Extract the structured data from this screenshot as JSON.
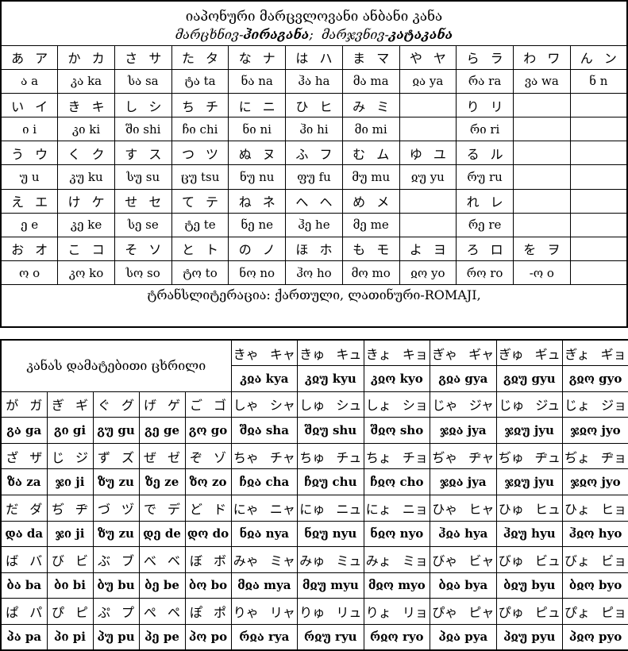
{
  "main_table": {
    "title": "იაპონური მარცვლოვანი ანბანი კანა",
    "subtitle": {
      "pre": "მარცხნივ-",
      "hiragana": "ჰირაგანა",
      "mid": ";  მარჯვნივ-",
      "katakana": "კატაკანა"
    },
    "footer": "ტრანსლიტერაცია: ქართული, ლათინური-ROMAJI,",
    "rows": [
      {
        "type": "kana",
        "cells": [
          "あ ア",
          "か カ",
          "さ サ",
          "た タ",
          "な ナ",
          "は ハ",
          "ま マ",
          "や ヤ",
          "ら ラ",
          "わ ワ",
          "ん ン"
        ]
      },
      {
        "type": "translit",
        "cells": [
          "ა a",
          "კა ka",
          "სა sa",
          "ტა ta",
          "ნა na",
          "ჰა ha",
          "მა ma",
          "ჲა ya",
          "რა ra",
          "ვა wa",
          "ნ n"
        ]
      },
      {
        "type": "kana",
        "cells": [
          "い イ",
          "き キ",
          "し シ",
          "ち チ",
          "に ニ",
          "ひ ヒ",
          "み ミ",
          "",
          "り リ",
          "",
          ""
        ]
      },
      {
        "type": "translit",
        "cells": [
          "ი i",
          "კი ki",
          "ში shi",
          "ჩი chi",
          "ნი ni",
          "ჰი hi",
          "მი mi",
          "",
          "რი ri",
          "",
          ""
        ]
      },
      {
        "type": "kana",
        "cells": [
          "う ウ",
          "く ク",
          "す ス",
          "つ ツ",
          "ぬ ヌ",
          "ふ フ",
          "む ム",
          "ゆ ユ",
          "る ル",
          "",
          ""
        ]
      },
      {
        "type": "translit",
        "cells": [
          "უ u",
          "კუ ku",
          "სუ su",
          "ცუ tsu",
          "ნუ nu",
          "ფუ fu",
          "მუ mu",
          "ჲუ yu",
          "რუ ru",
          "",
          ""
        ]
      },
      {
        "type": "kana",
        "cells": [
          "え エ",
          "け ケ",
          "せ セ",
          "て テ",
          "ね ネ",
          "へ ヘ",
          "め メ",
          "",
          "れ レ",
          "",
          ""
        ]
      },
      {
        "type": "translit",
        "cells": [
          "ე e",
          "კე ke",
          "სე se",
          "ტე te",
          "ნე ne",
          "ჰე he",
          "მე me",
          "",
          "რე re",
          "",
          ""
        ]
      },
      {
        "type": "kana",
        "cells": [
          "お オ",
          "こ コ",
          "そ ソ",
          "と ト",
          "の ノ",
          "ほ ホ",
          "も モ",
          "よ ヨ",
          "ろ ロ",
          "を ヲ",
          ""
        ]
      },
      {
        "type": "translit",
        "cells": [
          "ო o",
          "კო ko",
          "სო so",
          "ტო to",
          "ნო no",
          "ჰო ho",
          "მო mo",
          "ჲო yo",
          "რო ro",
          "-ო o",
          ""
        ]
      }
    ]
  },
  "additional_table": {
    "header_label": "კანას დამატებითი ცხრილი",
    "yoon_kana": [
      "きゃ キャ",
      "きゅ キュ",
      "きょ キョ",
      "ぎゃ ギャ",
      "ぎゅ ギュ",
      "ぎょ ギョ"
    ],
    "yoon_translit": [
      "კჲა kya",
      "კჲუ kyu",
      "კჲო kyo",
      "გჲა gya",
      "გჲუ gyu",
      "გჲო gyo"
    ],
    "rows": [
      {
        "type": "kana",
        "cells": [
          "が ガ",
          "ぎ ギ",
          "ぐ グ",
          "げ ゲ",
          "ご ゴ",
          "しゃ シャ",
          "しゅ シュ",
          "しょ ショ",
          "じゃ ジャ",
          "じゅ ジュ",
          "じょ ジョ"
        ]
      },
      {
        "type": "translit",
        "cells": [
          "გა ga",
          "გი gi",
          "გუ gu",
          "გე ge",
          "გო go",
          "შჲა sha",
          "შჲუ shu",
          "შჲო sho",
          "ჯჲა jya",
          "ჯჲუ jyu",
          "ჯჲო jyo"
        ]
      },
      {
        "type": "kana",
        "cells": [
          "ざ ザ",
          "じ ジ",
          "ず ズ",
          "ぜ ゼ",
          "ぞ ゾ",
          "ちゃ チャ",
          "ちゅ チュ",
          "ちょ チョ",
          "ぢゃ ヂャ",
          "ぢゅ ヂュ",
          "ぢょ ヂョ"
        ]
      },
      {
        "type": "translit",
        "cells": [
          "ზა za",
          "ჯი ji",
          "ზუ zu",
          "ზე ze",
          "ზო zo",
          "ჩჲა cha",
          "ჩჲუ chu",
          "ჩჲო cho",
          "ჯჲა jya",
          "ჯჲუ jyu",
          "ჯჲო jyo"
        ]
      },
      {
        "type": "kana",
        "cells": [
          "だ ダ",
          "ぢ ヂ",
          "づ ヅ",
          "で デ",
          "ど ド",
          "にゃ ニャ",
          "にゅ ニュ",
          "にょ ニョ",
          "ひゃ ヒャ",
          "ひゅ ヒュ",
          "ひょ ヒョ"
        ]
      },
      {
        "type": "translit",
        "cells": [
          "და da",
          "ჯი ji",
          "ზუ zu",
          "დე de",
          "დო do",
          "ნჲა nya",
          "ნჲუ nyu",
          "ნჲო nyo",
          "ჰჲა hya",
          "ჰჲუ hyu",
          "ჰჲო hyo"
        ]
      },
      {
        "type": "kana",
        "cells": [
          "ば バ",
          "び ビ",
          "ぶ ブ",
          "べ ベ",
          "ぼ ボ",
          "みゃ ミャ",
          "みゅ ミュ",
          "みょ ミョ",
          "びゃ ビャ",
          "びゅ ビュ",
          "びょ ビョ"
        ]
      },
      {
        "type": "translit",
        "cells": [
          "ბა ba",
          "ბი bi",
          "ბუ bu",
          "ბე be",
          "ბო bo",
          "მჲა mya",
          "მჲუ myu",
          "მჲო myo",
          "ბჲა bya",
          "ბჲუ byu",
          "ბჲო byo"
        ]
      },
      {
        "type": "kana",
        "cells": [
          "ぱ パ",
          "ぴ ピ",
          "ぷ プ",
          "ぺ ペ",
          "ぽ ポ",
          "りゃ リャ",
          "りゅ リュ",
          "りょ リョ",
          "ぴゃ ピャ",
          "ぴゅ ピュ",
          "ぴょ ピョ"
        ]
      },
      {
        "type": "translit",
        "cells": [
          "პა pa",
          "პი pi",
          "პუ pu",
          "პე pe",
          "პო po",
          "რჲა rya",
          "რჲუ ryu",
          "რჲო ryo",
          "პჲა pya",
          "პჲუ pyu",
          "პჲო pyo"
        ]
      }
    ]
  }
}
